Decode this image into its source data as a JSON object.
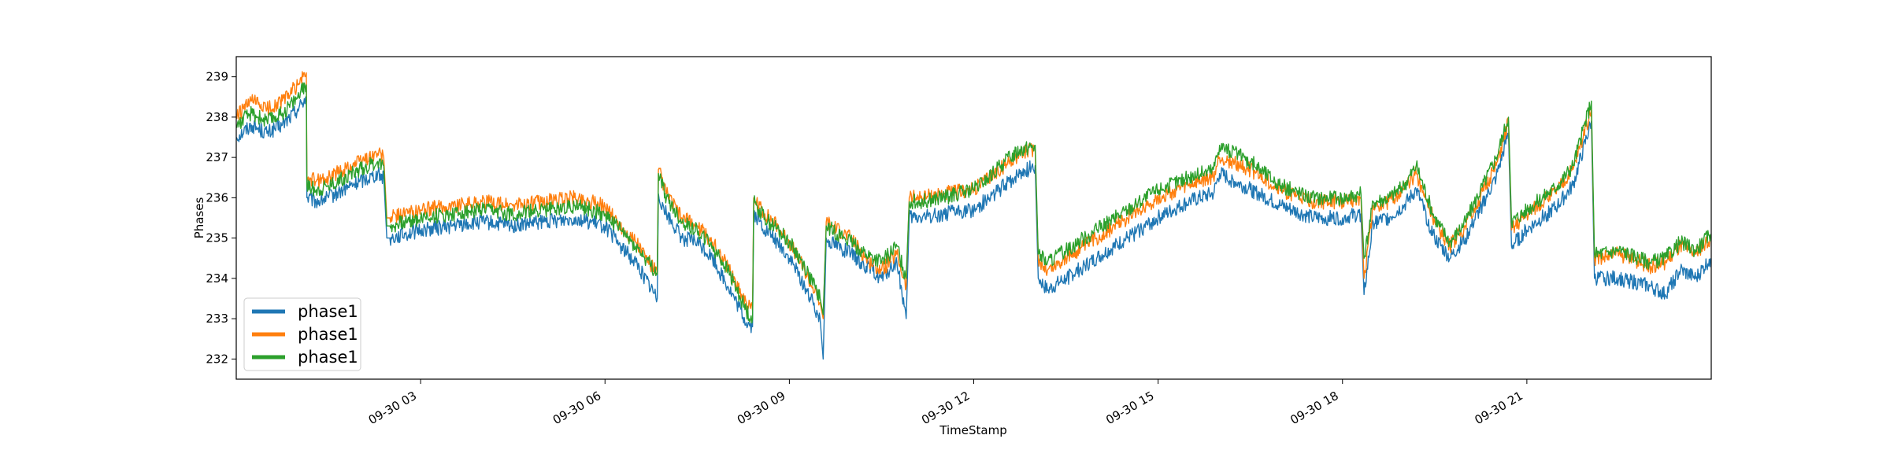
{
  "chart_data": {
    "type": "line",
    "title": "",
    "xlabel": "TimeStamp",
    "ylabel": "Phases",
    "xlim": [
      "09-30 00:00",
      "09-30 23:59"
    ],
    "ylim": [
      231.5,
      239.5
    ],
    "grid": false,
    "legend_position": "lower-left",
    "x_ticks": [
      {
        "hour": 3,
        "label": "09-30 03"
      },
      {
        "hour": 6,
        "label": "09-30 06"
      },
      {
        "hour": 9,
        "label": "09-30 09"
      },
      {
        "hour": 12,
        "label": "09-30 12"
      },
      {
        "hour": 15,
        "label": "09-30 15"
      },
      {
        "hour": 18,
        "label": "09-30 18"
      },
      {
        "hour": 21,
        "label": "09-30 21"
      }
    ],
    "y_ticks": [
      232,
      233,
      234,
      235,
      236,
      237,
      238,
      239
    ],
    "x_hours": [
      0,
      0.25,
      0.5,
      0.75,
      1.0,
      1.14,
      1.15,
      1.3,
      1.5,
      1.75,
      2.0,
      2.3,
      2.4,
      2.45,
      2.5,
      2.75,
      3.0,
      3.5,
      4.0,
      4.5,
      5.0,
      5.5,
      5.75,
      6.0,
      6.25,
      6.5,
      6.85,
      6.87,
      7.0,
      7.25,
      7.5,
      7.75,
      8.0,
      8.3,
      8.4,
      8.42,
      8.6,
      8.75,
      9.0,
      9.25,
      9.5,
      9.55,
      9.6,
      10.0,
      10.25,
      10.5,
      10.75,
      10.9,
      10.95,
      11.1,
      11.5,
      12.0,
      12.25,
      12.5,
      12.75,
      13.0,
      13.05,
      13.2,
      13.5,
      14.0,
      14.5,
      15.0,
      15.5,
      15.9,
      16.0,
      16.5,
      17.0,
      17.5,
      18.0,
      18.3,
      18.35,
      18.5,
      18.75,
      19.0,
      19.2,
      19.5,
      19.75,
      20.0,
      20.5,
      20.7,
      20.75,
      21.0,
      21.5,
      21.75,
      22.05,
      22.1,
      22.5,
      23.0,
      23.25,
      23.5,
      23.75,
      23.99
    ],
    "series": [
      {
        "name": "phase1",
        "color": "#1f77b4",
        "values": [
          237.5,
          237.8,
          237.6,
          237.8,
          238.2,
          238.5,
          236.0,
          235.9,
          236.0,
          236.2,
          236.4,
          236.6,
          236.5,
          235.0,
          235.0,
          235.1,
          235.2,
          235.3,
          235.4,
          235.3,
          235.4,
          235.5,
          235.4,
          235.3,
          234.8,
          234.4,
          233.5,
          236.1,
          235.6,
          235.0,
          234.9,
          234.5,
          233.8,
          232.9,
          232.8,
          235.6,
          235.2,
          235.0,
          234.5,
          233.8,
          233.0,
          232.0,
          235.0,
          234.6,
          234.3,
          234.0,
          234.4,
          233.0,
          235.5,
          235.5,
          235.6,
          235.7,
          236.0,
          236.3,
          236.6,
          236.8,
          234.0,
          233.7,
          234.0,
          234.5,
          235.0,
          235.5,
          235.9,
          236.1,
          236.6,
          236.2,
          235.8,
          235.5,
          235.5,
          235.6,
          233.6,
          235.4,
          235.5,
          235.8,
          236.2,
          235.0,
          234.5,
          235.0,
          236.5,
          237.6,
          234.8,
          235.2,
          235.8,
          236.3,
          237.9,
          234.0,
          234.0,
          233.8,
          233.6,
          234.2,
          234.0,
          234.5
        ]
      },
      {
        "name": "phase1",
        "color": "#ff7f0e",
        "values": [
          238.0,
          238.4,
          238.2,
          238.4,
          238.8,
          239.1,
          236.5,
          236.4,
          236.5,
          236.7,
          236.9,
          237.1,
          237.0,
          235.5,
          235.5,
          235.6,
          235.7,
          235.8,
          235.9,
          235.8,
          235.9,
          236.0,
          235.9,
          235.8,
          235.3,
          234.9,
          234.1,
          236.7,
          236.1,
          235.5,
          235.3,
          234.9,
          234.3,
          233.4,
          233.2,
          236.0,
          235.6,
          235.4,
          234.9,
          234.2,
          233.4,
          233.0,
          235.4,
          235.0,
          234.5,
          234.2,
          234.6,
          233.8,
          236.0,
          236.0,
          236.1,
          236.2,
          236.5,
          236.8,
          237.1,
          237.2,
          234.5,
          234.2,
          234.5,
          235.0,
          235.5,
          236.0,
          236.3,
          236.5,
          237.0,
          236.7,
          236.2,
          235.9,
          235.9,
          236.0,
          234.0,
          235.8,
          235.9,
          236.2,
          236.6,
          235.4,
          234.8,
          235.3,
          236.8,
          237.9,
          235.2,
          235.6,
          236.2,
          236.7,
          238.2,
          234.5,
          234.6,
          234.3,
          234.4,
          234.8,
          234.6,
          235.0
        ]
      },
      {
        "name": "phase1",
        "color": "#2ca02c",
        "values": [
          237.8,
          238.1,
          237.9,
          238.1,
          238.5,
          238.8,
          236.3,
          236.2,
          236.3,
          236.5,
          236.7,
          236.9,
          236.8,
          235.3,
          235.3,
          235.4,
          235.5,
          235.6,
          235.7,
          235.6,
          235.7,
          235.8,
          235.7,
          235.6,
          235.2,
          234.8,
          234.1,
          236.6,
          236.0,
          235.4,
          235.2,
          234.8,
          234.2,
          233.2,
          233.0,
          235.9,
          235.5,
          235.3,
          234.9,
          234.3,
          233.5,
          233.1,
          235.3,
          234.9,
          234.6,
          234.4,
          234.8,
          234.0,
          235.9,
          235.9,
          236.0,
          236.2,
          236.5,
          236.9,
          237.2,
          237.3,
          234.6,
          234.4,
          234.7,
          235.2,
          235.7,
          236.2,
          236.5,
          236.7,
          237.3,
          236.9,
          236.3,
          236.0,
          236.0,
          236.1,
          234.5,
          235.9,
          236.0,
          236.3,
          236.8,
          235.5,
          234.9,
          235.4,
          237.0,
          238.0,
          235.4,
          235.7,
          236.3,
          236.8,
          238.4,
          234.6,
          234.7,
          234.4,
          234.5,
          234.9,
          234.7,
          235.1
        ]
      }
    ]
  }
}
